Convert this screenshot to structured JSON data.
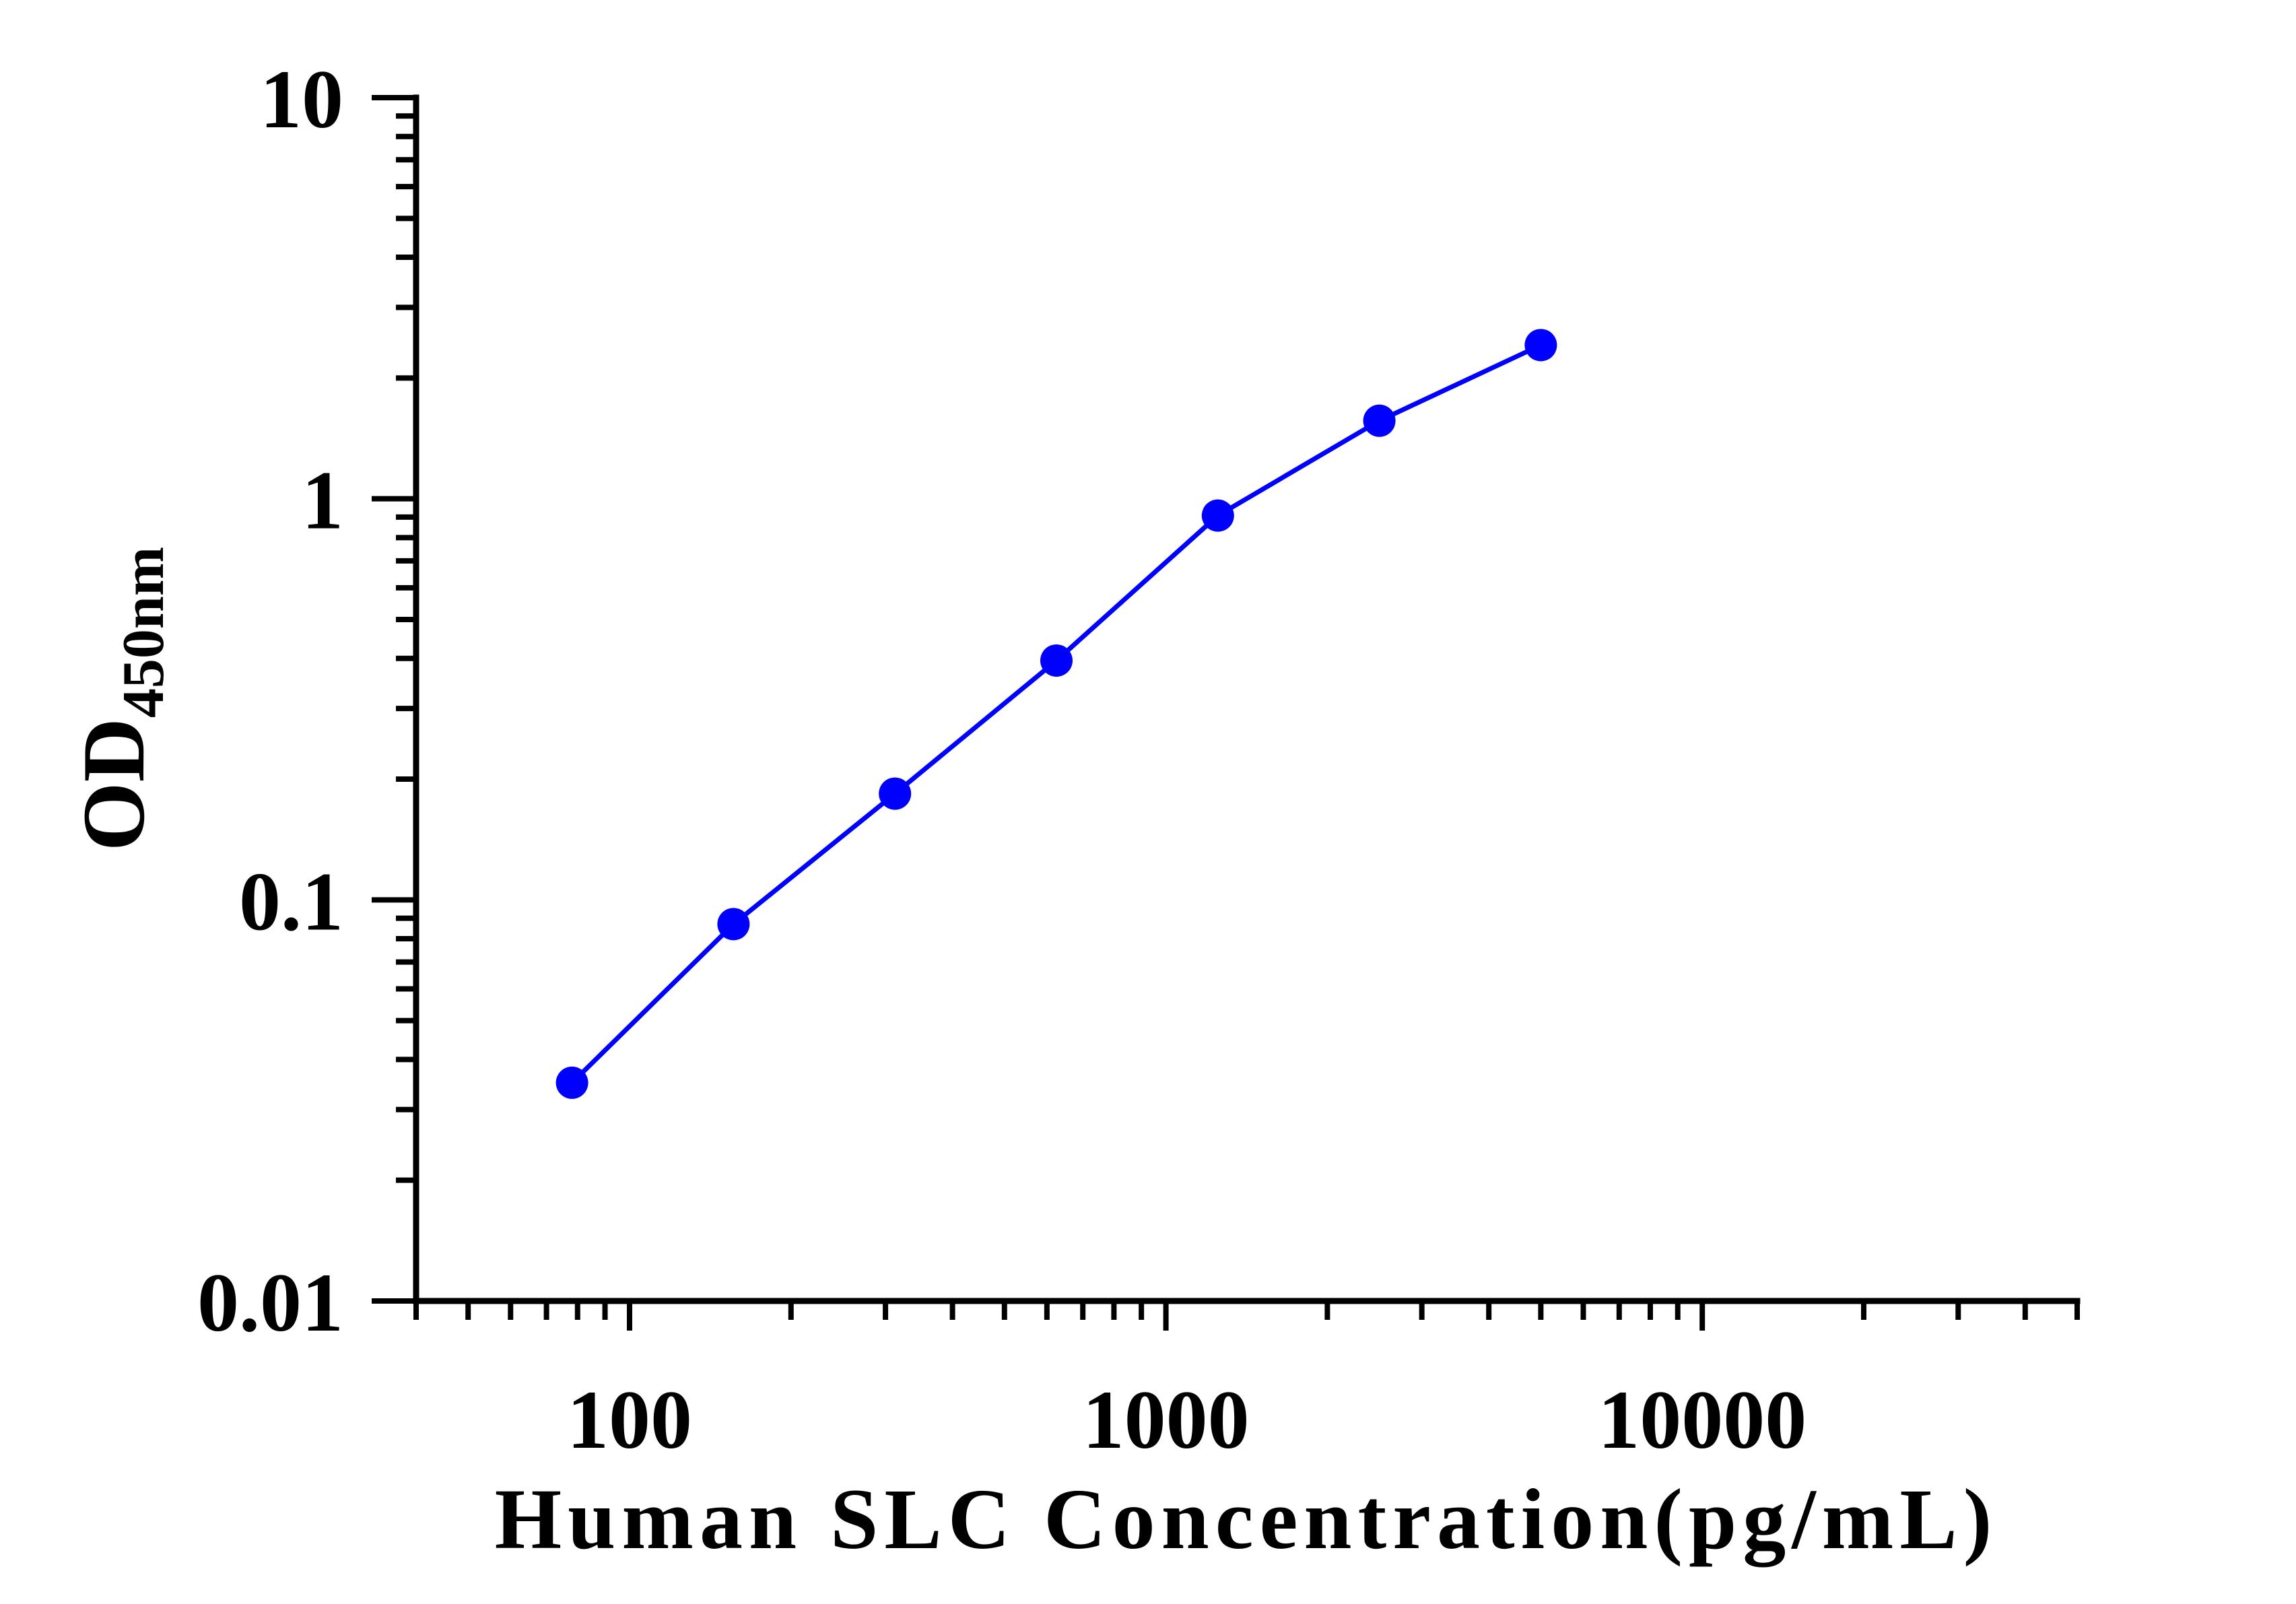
{
  "chart_data": {
    "type": "line",
    "title": "",
    "xlabel": "Human SLC Concentration(pg/mL)",
    "ylabel": {
      "main": "OD",
      "subscript": "450nm"
    },
    "xscale": "log",
    "yscale": "log",
    "xlim": [
      40,
      50000
    ],
    "ylim": [
      0.01,
      10
    ],
    "xticks": {
      "values": [
        100,
        1000,
        10000
      ],
      "labels": [
        "100",
        "1000",
        "10000"
      ]
    },
    "yticks": {
      "values": [
        0.01,
        0.1,
        1,
        10
      ],
      "labels": [
        "0.01",
        "0.1",
        "1",
        "10"
      ]
    },
    "minor_ticks": true,
    "grid": false,
    "legend": false,
    "axis_color": "#000000",
    "series": [
      {
        "x": [
          78.125,
          156.25,
          312.5,
          625,
          1250,
          2500,
          5000
        ],
        "y": [
          0.035,
          0.087,
          0.184,
          0.395,
          0.908,
          1.565,
          2.416
        ],
        "color": "#0000FF",
        "marker": "circle"
      }
    ]
  }
}
